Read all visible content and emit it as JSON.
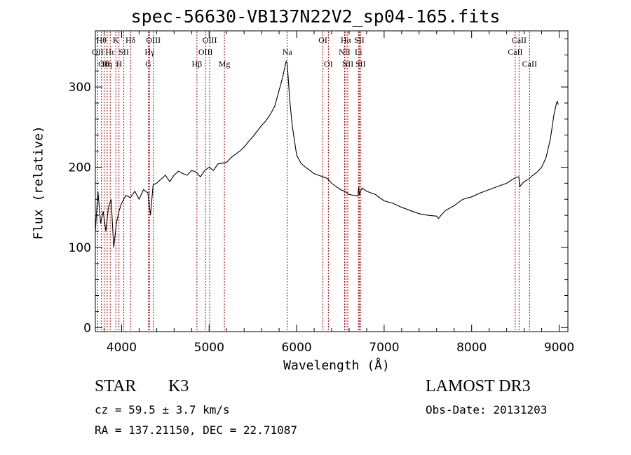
{
  "chart_data": {
    "type": "line",
    "title": "spec-56630-VB137N22V2_sp04-165.fits",
    "xlabel": "Wavelength (Å)",
    "ylabel": "Flux (relative)",
    "xlim": [
      3700,
      9100
    ],
    "ylim": [
      -5,
      370
    ],
    "xticks": [
      4000,
      5000,
      6000,
      7000,
      8000,
      9000
    ],
    "yticks": [
      0,
      100,
      200,
      300
    ],
    "grid": false,
    "series": [
      {
        "x": [
          3700,
          3730,
          3760,
          3790,
          3820,
          3850,
          3880,
          3910,
          3940,
          3970,
          4000,
          4050,
          4100,
          4150,
          4200,
          4250,
          4300,
          4330,
          4360,
          4400,
          4450,
          4500,
          4550,
          4600,
          4650,
          4700,
          4750,
          4800,
          4850,
          4900,
          4950,
          5000,
          5050,
          5100,
          5150,
          5200,
          5250,
          5300,
          5350,
          5400,
          5450,
          5500,
          5550,
          5600,
          5650,
          5700,
          5750,
          5780,
          5810,
          5840,
          5860,
          5880,
          5890,
          5900,
          5920,
          5950,
          6000,
          6050,
          6100,
          6150,
          6200,
          6250,
          6300,
          6350,
          6400,
          6450,
          6500,
          6550,
          6600,
          6650,
          6700,
          6710,
          6715,
          6720,
          6730,
          6750,
          6800,
          6850,
          6900,
          6950,
          7000,
          7100,
          7200,
          7300,
          7400,
          7500,
          7600,
          7620,
          7650,
          7700,
          7800,
          7900,
          8000,
          8100,
          8200,
          8300,
          8400,
          8500,
          8540,
          8550,
          8600,
          8650,
          8700,
          8750,
          8800,
          8850,
          8900,
          8940,
          8970,
          8980,
          8990
        ],
        "y": [
          120,
          170,
          130,
          145,
          120,
          150,
          160,
          100,
          130,
          145,
          155,
          165,
          162,
          170,
          160,
          172,
          168,
          140,
          178,
          180,
          185,
          190,
          182,
          190,
          195,
          192,
          190,
          196,
          194,
          188,
          196,
          200,
          196,
          204,
          205,
          206,
          212,
          216,
          220,
          225,
          232,
          238,
          245,
          252,
          258,
          266,
          276,
          288,
          300,
          312,
          322,
          332,
          330,
          318,
          285,
          252,
          215,
          205,
          200,
          196,
          192,
          190,
          188,
          186,
          180,
          176,
          172,
          170,
          166,
          165,
          164,
          175,
          168,
          165,
          170,
          174,
          170,
          168,
          166,
          162,
          158,
          155,
          150,
          146,
          142,
          140,
          139,
          136,
          140,
          146,
          152,
          160,
          163,
          168,
          172,
          176,
          180,
          187,
          188,
          176,
          182,
          185,
          190,
          194,
          200,
          212,
          235,
          265,
          280,
          282,
          278
        ]
      }
    ],
    "lines": [
      {
        "x": 3727,
        "label": "OII",
        "row": 2
      },
      {
        "x": 3770,
        "label": "Hθ",
        "row": 1
      },
      {
        "x": 3800,
        "label": "OII",
        "row": 3
      },
      {
        "x": 3835,
        "label": "Hη",
        "row": 3
      },
      {
        "x": 3870,
        "label": "Hε",
        "row": 2
      },
      {
        "x": 3934,
        "label": "K",
        "row": 1
      },
      {
        "x": 3970,
        "label": "H",
        "row": 3
      },
      {
        "x": 4025,
        "label": "SII",
        "row": 2
      },
      {
        "x": 4102,
        "label": "Hδ",
        "row": 1
      },
      {
        "x": 4305,
        "label": "G",
        "row": 3
      },
      {
        "x": 4320,
        "label": "Hγ",
        "row": 2
      },
      {
        "x": 4363,
        "label": "OIII",
        "row": 1
      },
      {
        "x": 4861,
        "label": "Hβ",
        "row": 3
      },
      {
        "x": 4959,
        "label": "OIII",
        "row": 2
      },
      {
        "x": 5007,
        "label": "OIII",
        "row": 1
      },
      {
        "x": 5175,
        "label": "Mg",
        "row": 3
      },
      {
        "x": 5893,
        "label": "Na",
        "row": 2
      },
      {
        "x": 6300,
        "label": "OI",
        "row": 1
      },
      {
        "x": 6363,
        "label": "OI",
        "row": 3
      },
      {
        "x": 6548,
        "label": "NII",
        "row": 2
      },
      {
        "x": 6563,
        "label": "Hα",
        "row": 1
      },
      {
        "x": 6584,
        "label": "NII",
        "row": 3
      },
      {
        "x": 6707,
        "label": "Li",
        "row": 2
      },
      {
        "x": 6716,
        "label": "SII",
        "row": 1
      },
      {
        "x": 6731,
        "label": "SII",
        "row": 3
      },
      {
        "x": 8498,
        "label": "CaII",
        "row": 2
      },
      {
        "x": 8542,
        "label": "CaII",
        "row": 1
      },
      {
        "x": 8662,
        "label": "CaII",
        "row": 3
      }
    ]
  },
  "info": {
    "class_label": "STAR",
    "subclass": "K3",
    "survey": "LAMOST DR3",
    "cz": "cz = 59.5 ± 3.7 km/s",
    "obs_date": "Obs-Date: 20131203",
    "coords": "RA = 137.21150, DEC =  22.71087"
  },
  "colors": {
    "line_markers": "#b00000",
    "spectrum": "#000000"
  }
}
